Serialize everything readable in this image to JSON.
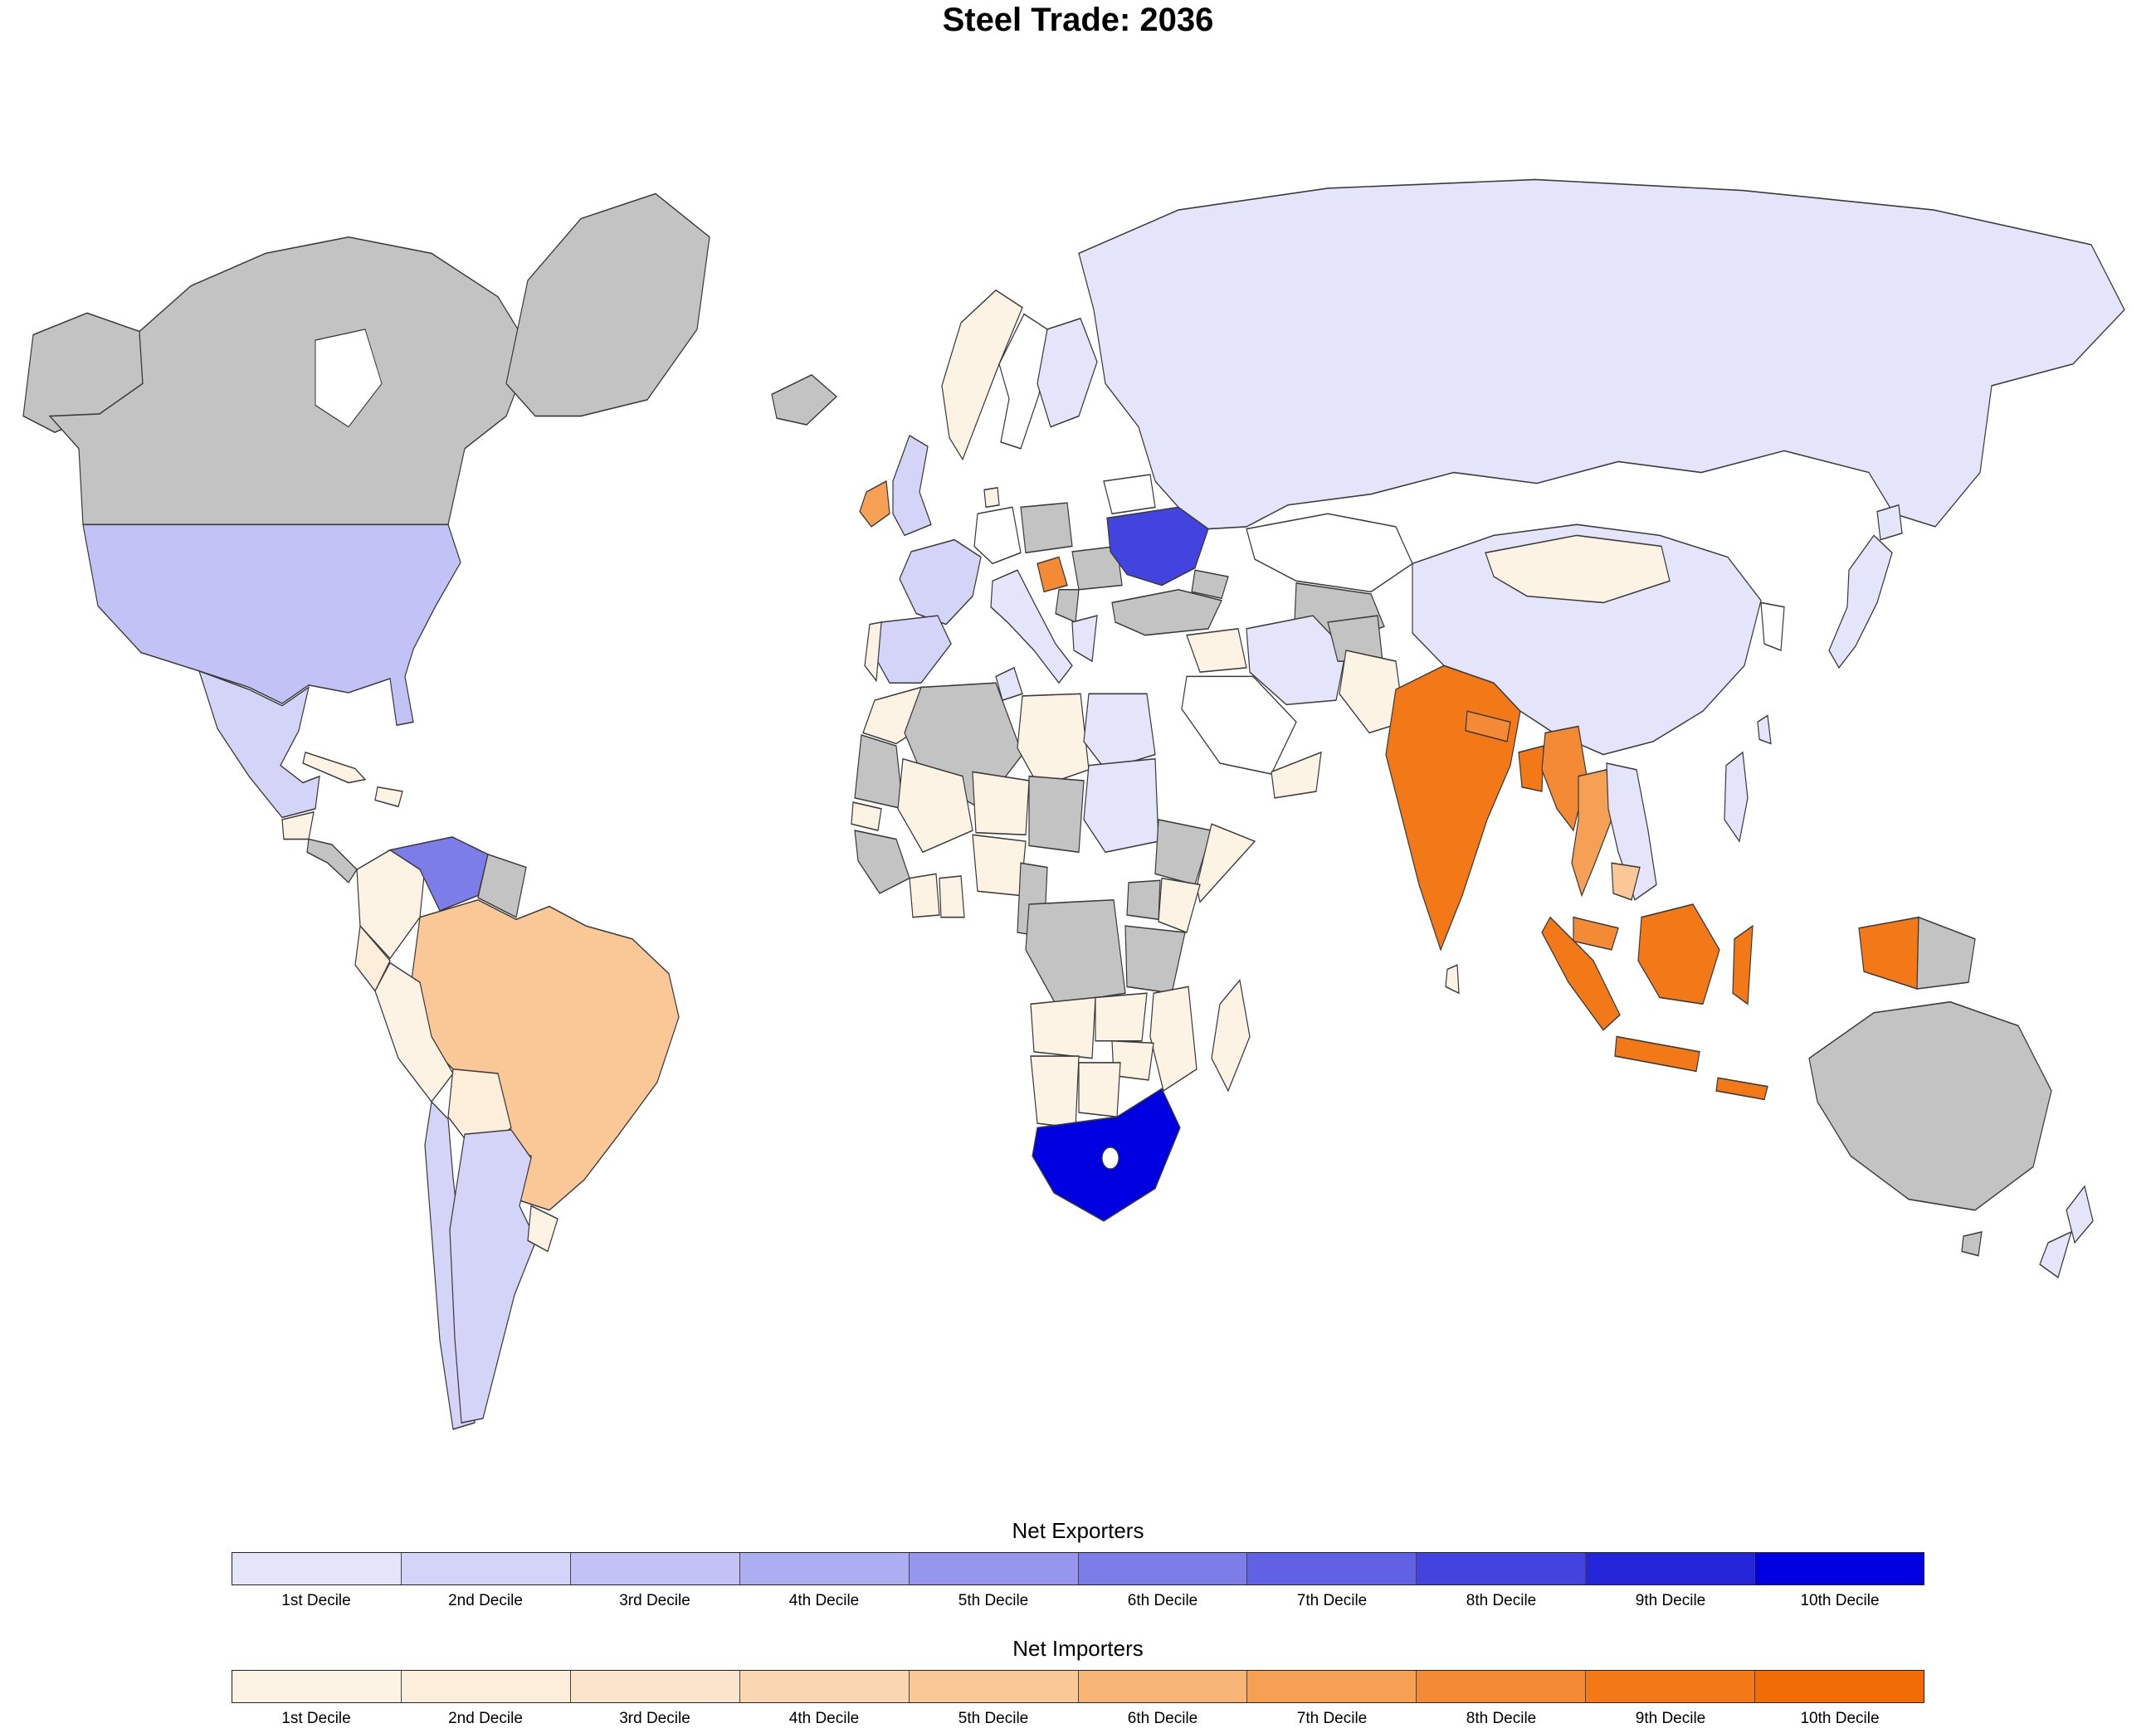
{
  "title": "Steel Trade: 2036",
  "legend": {
    "exporters": {
      "title": "Net Exporters",
      "labels": [
        "1st Decile",
        "2nd Decile",
        "3rd Decile",
        "4th Decile",
        "5th Decile",
        "6th Decile",
        "7th Decile",
        "8th Decile",
        "9th Decile",
        "10th Decile"
      ],
      "colors": [
        "#e4e4fb",
        "#d4d4f9",
        "#c2c2f6",
        "#adadf2",
        "#9696ee",
        "#7d7dea",
        "#6161e5",
        "#4343df",
        "#2424d9",
        "#0000e0"
      ]
    },
    "importers": {
      "title": "Net Importers",
      "labels": [
        "1st Decile",
        "2nd Decile",
        "3rd Decile",
        "4th Decile",
        "5th Decile",
        "6th Decile",
        "7th Decile",
        "8th Decile",
        "9th Decile",
        "10th Decile"
      ],
      "colors": [
        "#fdf3e5",
        "#fceedb",
        "#fbe4cb",
        "#fad6b2",
        "#f9c896",
        "#f7b678",
        "#f5a055",
        "#f48a35",
        "#f37818",
        "#f26c05"
      ]
    }
  },
  "chart_data": {
    "type": "choropleth_map",
    "title": "Steel Trade: 2036",
    "no_data_color": "#c3c3c3",
    "neutral_color": "#ffffff",
    "groups": [
      "exporter",
      "importer",
      "neutral"
    ],
    "countries": [
      {
        "id": "usa",
        "name": "United States",
        "group": "exporter",
        "decile": 3
      },
      {
        "id": "mexico",
        "name": "Mexico",
        "group": "exporter",
        "decile": 2
      },
      {
        "id": "venezuela",
        "name": "Venezuela",
        "group": "exporter",
        "decile": 6
      },
      {
        "id": "chile",
        "name": "Chile",
        "group": "exporter",
        "decile": 2
      },
      {
        "id": "argentina",
        "name": "Argentina",
        "group": "exporter",
        "decile": 2
      },
      {
        "id": "uk",
        "name": "United Kingdom",
        "group": "exporter",
        "decile": 2
      },
      {
        "id": "france",
        "name": "France",
        "group": "exporter",
        "decile": 2
      },
      {
        "id": "spain",
        "name": "Spain",
        "group": "exporter",
        "decile": 2
      },
      {
        "id": "italy",
        "name": "Italy",
        "group": "exporter",
        "decile": 1
      },
      {
        "id": "greece",
        "name": "Greece",
        "group": "exporter",
        "decile": 1
      },
      {
        "id": "finland",
        "name": "Finland",
        "group": "exporter",
        "decile": 1
      },
      {
        "id": "ukraine",
        "name": "Ukraine",
        "group": "exporter",
        "decile": 8
      },
      {
        "id": "russia",
        "name": "Russia",
        "group": "exporter",
        "decile": 1
      },
      {
        "id": "china",
        "name": "China",
        "group": "exporter",
        "decile": 1
      },
      {
        "id": "japan",
        "name": "Japan",
        "group": "exporter",
        "decile": 1
      },
      {
        "id": "iran",
        "name": "Iran",
        "group": "exporter",
        "decile": 1
      },
      {
        "id": "egypt",
        "name": "Egypt",
        "group": "exporter",
        "decile": 1
      },
      {
        "id": "sudan",
        "name": "Sudan",
        "group": "exporter",
        "decile": 1
      },
      {
        "id": "tunisia",
        "name": "Tunisia",
        "group": "exporter",
        "decile": 1
      },
      {
        "id": "south-africa",
        "name": "South Africa",
        "group": "exporter",
        "decile": 10
      },
      {
        "id": "philippines",
        "name": "Philippines",
        "group": "exporter",
        "decile": 1
      },
      {
        "id": "vietnam",
        "name": "Vietnam",
        "group": "exporter",
        "decile": 1
      },
      {
        "id": "taiwan",
        "name": "Taiwan",
        "group": "exporter",
        "decile": 1
      },
      {
        "id": "new-zealand",
        "name": "New Zealand",
        "group": "exporter",
        "decile": 1
      },
      {
        "id": "ireland",
        "name": "Ireland",
        "group": "importer",
        "decile": 7
      },
      {
        "id": "croatia",
        "name": "Croatia",
        "group": "importer",
        "decile": 8
      },
      {
        "id": "norway",
        "name": "Norway",
        "group": "importer",
        "decile": 1
      },
      {
        "id": "portugal",
        "name": "Portugal",
        "group": "importer",
        "decile": 1
      },
      {
        "id": "denmark",
        "name": "Denmark",
        "group": "importer",
        "decile": 1
      },
      {
        "id": "morocco",
        "name": "Morocco",
        "group": "importer",
        "decile": 1
      },
      {
        "id": "libya",
        "name": "Libya",
        "group": "importer",
        "decile": 1
      },
      {
        "id": "mali",
        "name": "Mali",
        "group": "importer",
        "decile": 1
      },
      {
        "id": "niger",
        "name": "Niger",
        "group": "importer",
        "decile": 1
      },
      {
        "id": "senegal",
        "name": "Senegal",
        "group": "importer",
        "decile": 1
      },
      {
        "id": "ivory-coast",
        "name": "Ivory Coast",
        "group": "importer",
        "decile": 1
      },
      {
        "id": "ghana",
        "name": "Ghana",
        "group": "importer",
        "decile": 1
      },
      {
        "id": "nigeria",
        "name": "Nigeria",
        "group": "importer",
        "decile": 1
      },
      {
        "id": "somalia",
        "name": "Somalia",
        "group": "importer",
        "decile": 1
      },
      {
        "id": "kenya",
        "name": "Kenya",
        "group": "importer",
        "decile": 1
      },
      {
        "id": "angola",
        "name": "Angola",
        "group": "importer",
        "decile": 1
      },
      {
        "id": "zambia",
        "name": "Zambia",
        "group": "importer",
        "decile": 1
      },
      {
        "id": "zimbabwe",
        "name": "Zimbabwe",
        "group": "importer",
        "decile": 1
      },
      {
        "id": "mozambique",
        "name": "Mozambique",
        "group": "importer",
        "decile": 1
      },
      {
        "id": "botswana",
        "name": "Botswana",
        "group": "importer",
        "decile": 1
      },
      {
        "id": "namibia",
        "name": "Namibia",
        "group": "importer",
        "decile": 1
      },
      {
        "id": "madagascar",
        "name": "Madagascar",
        "group": "importer",
        "decile": 1
      },
      {
        "id": "yemen",
        "name": "Yemen",
        "group": "importer",
        "decile": 1
      },
      {
        "id": "iraq",
        "name": "Iraq",
        "group": "importer",
        "decile": 1
      },
      {
        "id": "pakistan",
        "name": "Pakistan",
        "group": "importer",
        "decile": 1
      },
      {
        "id": "india",
        "name": "India",
        "group": "importer",
        "decile": 9
      },
      {
        "id": "nepal",
        "name": "Nepal",
        "group": "importer",
        "decile": 8
      },
      {
        "id": "bangladesh",
        "name": "Bangladesh",
        "group": "importer",
        "decile": 9
      },
      {
        "id": "sri-lanka",
        "name": "Sri Lanka",
        "group": "importer",
        "decile": 1
      },
      {
        "id": "mongolia",
        "name": "Mongolia",
        "group": "importer",
        "decile": 1
      },
      {
        "id": "myanmar",
        "name": "Myanmar",
        "group": "importer",
        "decile": 8
      },
      {
        "id": "thailand",
        "name": "Thailand",
        "group": "importer",
        "decile": 7
      },
      {
        "id": "cambodia",
        "name": "Cambodia",
        "group": "importer",
        "decile": 5
      },
      {
        "id": "malaysia",
        "name": "Malaysia",
        "group": "importer",
        "decile": 8
      },
      {
        "id": "indonesia",
        "name": "Indonesia",
        "group": "importer",
        "decile": 9
      },
      {
        "id": "brazil",
        "name": "Brazil",
        "group": "importer",
        "decile": 5
      },
      {
        "id": "colombia",
        "name": "Colombia",
        "group": "importer",
        "decile": 1
      },
      {
        "id": "ecuador",
        "name": "Ecuador",
        "group": "importer",
        "decile": 2
      },
      {
        "id": "peru",
        "name": "Peru",
        "group": "importer",
        "decile": 1
      },
      {
        "id": "bolivia",
        "name": "Bolivia",
        "group": "importer",
        "decile": 2
      },
      {
        "id": "paraguay",
        "name": "Paraguay",
        "group": "importer",
        "decile": 1
      },
      {
        "id": "uruguay",
        "name": "Uruguay",
        "group": "importer",
        "decile": 1
      },
      {
        "id": "guatemala",
        "name": "Guatemala",
        "group": "importer",
        "decile": 1
      },
      {
        "id": "cuba",
        "name": "Cuba",
        "group": "importer",
        "decile": 1
      },
      {
        "id": "hispaniola",
        "name": "Hispaniola",
        "group": "importer",
        "decile": 1
      },
      {
        "id": "sweden",
        "name": "Sweden",
        "group": "neutral",
        "decile": 0
      },
      {
        "id": "germany",
        "name": "Germany",
        "group": "neutral",
        "decile": 0
      },
      {
        "id": "belarus",
        "name": "Belarus",
        "group": "neutral",
        "decile": 0
      },
      {
        "id": "kazakhstan",
        "name": "Kazakhstan",
        "group": "neutral",
        "decile": 0
      },
      {
        "id": "saudi-arabia",
        "name": "Saudi Arabia",
        "group": "neutral",
        "decile": 0
      },
      {
        "id": "south-korea",
        "name": "South Korea",
        "group": "neutral",
        "decile": 0
      },
      {
        "id": "lesotho",
        "name": "Lesotho",
        "group": "neutral",
        "decile": 0
      }
    ]
  }
}
